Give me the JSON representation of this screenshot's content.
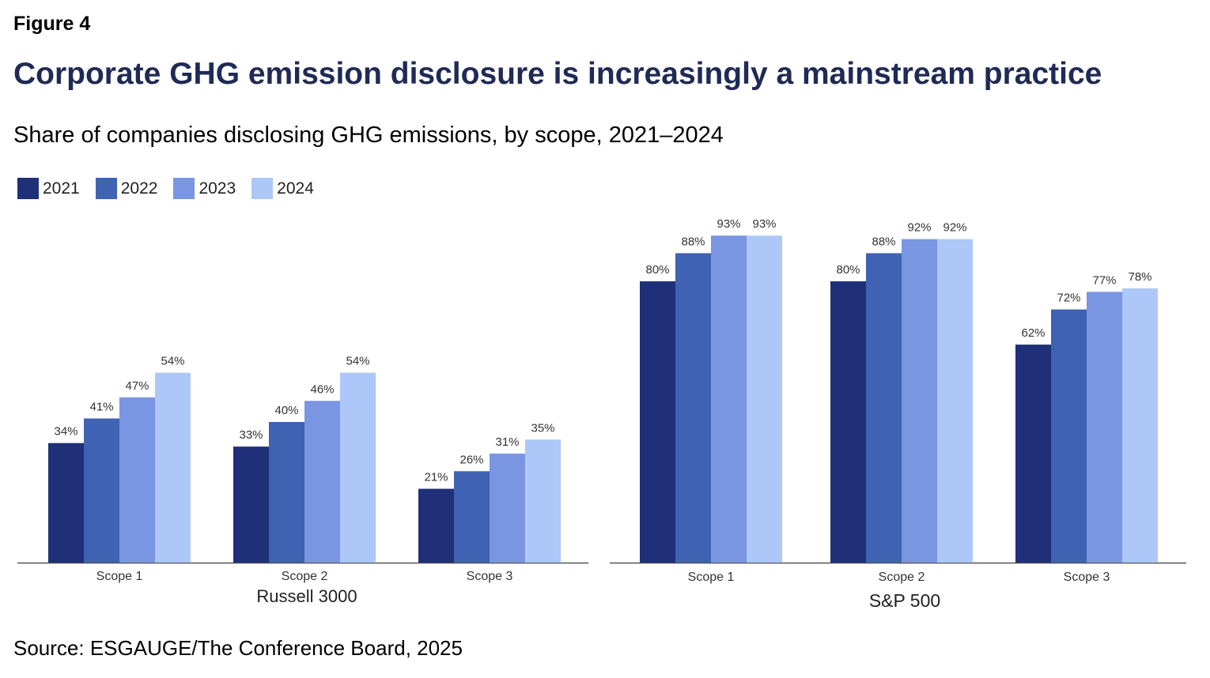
{
  "figure_label": "Figure 4",
  "title": "Corporate GHG emission disclosure is increasingly a mainstream practice",
  "subtitle": "Share of companies disclosing GHG emissions, by scope, 2021–2024",
  "source": "Source: ESGAUGE/The Conference Board, 2025",
  "legend": [
    {
      "label": "2021",
      "color": "#1f3078"
    },
    {
      "label": "2022",
      "color": "#3f62b2"
    },
    {
      "label": "2023",
      "color": "#7a96e2"
    },
    {
      "label": "2024",
      "color": "#adc8f8"
    }
  ],
  "chart_data": [
    {
      "type": "bar",
      "xlabel": "Russell 3000",
      "categories": [
        "Scope 1",
        "Scope 2",
        "Scope 3"
      ],
      "ylim": [
        0,
        100
      ],
      "grid": false,
      "series": [
        {
          "name": "2021",
          "values": [
            34,
            33,
            21
          ],
          "labels": [
            "34%",
            "33%",
            "21%"
          ]
        },
        {
          "name": "2022",
          "values": [
            41,
            40,
            26
          ],
          "labels": [
            "41%",
            "40%",
            "26%"
          ]
        },
        {
          "name": "2023",
          "values": [
            47,
            46,
            31
          ],
          "labels": [
            "47%",
            "46%",
            "31%"
          ]
        },
        {
          "name": "2024",
          "values": [
            54,
            54,
            35
          ],
          "labels": [
            "54%",
            "54%",
            "35%"
          ]
        }
      ]
    },
    {
      "type": "bar",
      "xlabel": "S&P 500",
      "categories": [
        "Scope 1",
        "Scope 2",
        "Scope 3"
      ],
      "ylim": [
        0,
        100
      ],
      "grid": false,
      "series": [
        {
          "name": "2021",
          "values": [
            80,
            80,
            62
          ],
          "labels": [
            "80%",
            "80%",
            "62%"
          ]
        },
        {
          "name": "2022",
          "values": [
            88,
            88,
            72
          ],
          "labels": [
            "88%",
            "88%",
            "72%"
          ]
        },
        {
          "name": "2023",
          "values": [
            93,
            92,
            77
          ],
          "labels": [
            "93%",
            "92%",
            "77%"
          ]
        },
        {
          "name": "2024",
          "values": [
            93,
            92,
            78
          ],
          "labels": [
            "93%",
            "92%",
            "78%"
          ]
        }
      ]
    }
  ]
}
